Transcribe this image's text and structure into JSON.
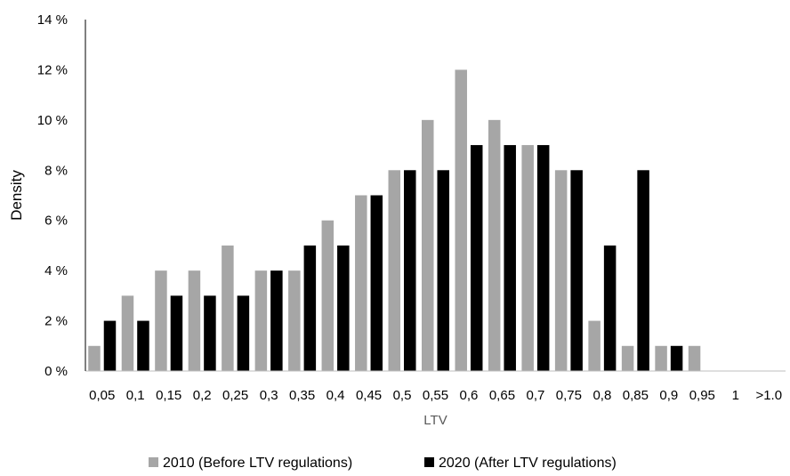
{
  "chart_data": {
    "type": "bar",
    "categories": [
      "0,05",
      "0,1",
      "0,15",
      "0,2",
      "0,25",
      "0,3",
      "0,35",
      "0,4",
      "0,45",
      "0,5",
      "0,55",
      "0,6",
      "0,65",
      "0,7",
      "0,75",
      "0,8",
      "0,85",
      "0,9",
      "0,95",
      "1",
      ">1.0"
    ],
    "series": [
      {
        "name": "2010 (Before LTV regulations)",
        "color": "#a6a6a6",
        "values": [
          1,
          3,
          4,
          4,
          5,
          4,
          4,
          6,
          7,
          8,
          10,
          12,
          10,
          9,
          8,
          2,
          1,
          1,
          1,
          0,
          0
        ]
      },
      {
        "name": "2020 (After LTV regulations)",
        "color": "#000000",
        "values": [
          2,
          2,
          3,
          3,
          3,
          4,
          5,
          5,
          7,
          8,
          8,
          9,
          9,
          9,
          8,
          5,
          8,
          1,
          0,
          0,
          0
        ]
      }
    ],
    "title": "",
    "xlabel": "LTV",
    "ylabel": "Density",
    "ylim": [
      0,
      14
    ],
    "yticks": [
      0,
      2,
      4,
      6,
      8,
      10,
      12,
      14
    ],
    "ytick_labels": [
      "0 %",
      "2 %",
      "4 %",
      "6 %",
      "8 %",
      "10 %",
      "12 %",
      "14 %"
    ],
    "grid": false,
    "legend_position": "bottom"
  }
}
